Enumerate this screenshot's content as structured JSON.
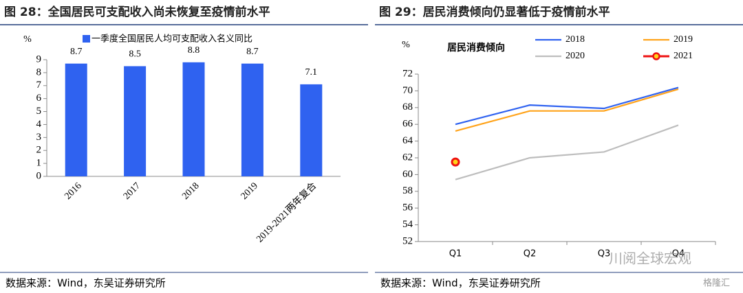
{
  "chart_data": [
    {
      "type": "bar",
      "title": "图 28：全国居民可支配收入尚未恢复至疫情前水平",
      "ylabel": "%",
      "categories": [
        "2016",
        "2017",
        "2018",
        "2019",
        "2019-2021两年复合"
      ],
      "series": [
        {
          "name": "一季度全国居民人均可支配收入名义同比",
          "color": "#2f62f0",
          "values": [
            8.7,
            8.5,
            8.8,
            8.7,
            7.1
          ]
        }
      ],
      "ylim": [
        0,
        9
      ],
      "yticks": [
        0,
        1,
        2,
        3,
        4,
        5,
        6,
        7,
        8,
        9
      ],
      "source": "数据来源：Wind，东吴证券研究所"
    },
    {
      "type": "line",
      "title": "图 29：居民消费倾向仍显著低于疫情前水平",
      "ylabel": "%",
      "annotation": "居民消费倾向",
      "categories": [
        "Q1",
        "Q2",
        "Q3",
        "Q4"
      ],
      "series": [
        {
          "name": "2018",
          "color": "#2f62f0",
          "values": [
            66.0,
            68.3,
            67.9,
            70.4
          ]
        },
        {
          "name": "2019",
          "color": "#ffa31a",
          "values": [
            65.2,
            67.6,
            67.6,
            70.2
          ]
        },
        {
          "name": "2020",
          "color": "#bdbdbd",
          "values": [
            59.4,
            62.0,
            62.7,
            65.9
          ]
        },
        {
          "name": "2021",
          "color": "#ee1111",
          "values": [
            61.5,
            null,
            null,
            null
          ]
        }
      ],
      "ylim": [
        52,
        72
      ],
      "yticks": [
        52,
        54,
        56,
        58,
        60,
        62,
        64,
        66,
        68,
        70,
        72
      ],
      "watermark": "川阅全球宏观",
      "watermark2": "格隆汇",
      "source": "数据来源：Wind，东吴证券研究所"
    }
  ]
}
